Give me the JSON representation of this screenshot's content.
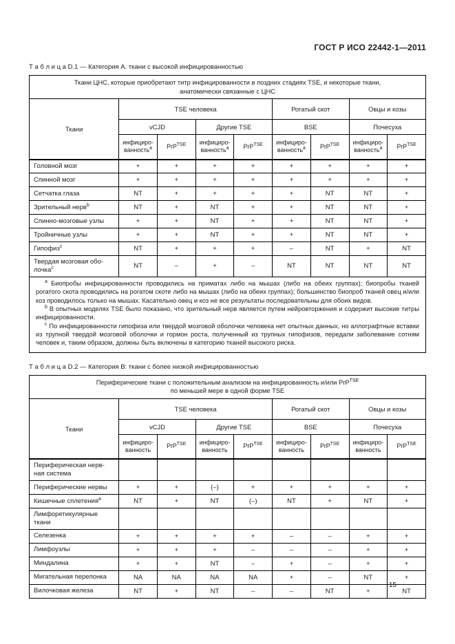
{
  "page": {
    "doc_code": "ГОСТ Р ИСО 22442-1—2011",
    "page_number": "15"
  },
  "shared": {
    "tissues_label": "Ткани",
    "groups": [
      "TSE человека",
      "Рогатый скот",
      "Овцы и козы"
    ],
    "subgroups": [
      "vCJD",
      "Другие TSE",
      "BSE",
      "Почесуха"
    ],
    "leaf_infectivity": "инфициро-\nванность",
    "prp_base": "PrP",
    "prp_sup": "TSE"
  },
  "table_d1": {
    "caption": "Т а б л и ц а  D.1 — Категория А. ткани с высокой инфицированностью",
    "banner": "Ткани ЦНС, которые приобретают титр инфицированности в поздних стадиях TSE, и некоторые ткани,\nанатомически связанные с ЦНС",
    "leaf_sup": "a",
    "rows": [
      {
        "label": "Головной мозг",
        "sup": "",
        "values": [
          "+",
          "+",
          "+",
          "+",
          "+",
          "+",
          "+",
          "+"
        ]
      },
      {
        "label": "Спинной мозг",
        "sup": "",
        "values": [
          "+",
          "+",
          "+",
          "+",
          "+",
          "+",
          "+",
          "+"
        ]
      },
      {
        "label": "Сетчатка глаза",
        "sup": "",
        "values": [
          "NT",
          "+",
          "+",
          "+",
          "+",
          "NT",
          "NT",
          "+"
        ]
      },
      {
        "label": "Зрительный нерв",
        "sup": "b",
        "values": [
          "NT",
          "+",
          "NT",
          "+",
          "+",
          "NT",
          "NT",
          "+"
        ]
      },
      {
        "label": "Спинно-мозговые узлы",
        "sup": "",
        "values": [
          "+",
          "+",
          "NT",
          "+",
          "+",
          "NT",
          "NT",
          "+"
        ]
      },
      {
        "label": "Тройничные узлы",
        "sup": "",
        "values": [
          "+",
          "+",
          "NT",
          "+",
          "+",
          "NT",
          "NT",
          "+"
        ]
      },
      {
        "label": "Гипофиз",
        "sup": "c",
        "values": [
          "NT",
          "+",
          "+",
          "+",
          "–",
          "NT",
          "+",
          "NT"
        ]
      },
      {
        "label": "Твердая мозговая обо-\nлочка",
        "sup": "c",
        "values": [
          "NT",
          "–",
          "+",
          "–",
          "NT",
          "NT",
          "NT",
          "NT"
        ]
      }
    ],
    "footnotes": [
      {
        "marker": "a",
        "text": " Биопробы инфицированности проводились на приматах либо на мышах (либо на обеих группах); биопробы тканей рогатого скота проводились на рогатом скоте либо на мышах (либо на обеих группах); большинство биопроб тканей овец и/или коз проводилось только на мышах. Касательно овец и коз не все результаты последовательны для обоих видов."
      },
      {
        "marker": "b",
        "text": " В опытных моделях TSE было показано, что зрительный нерв является путем нейровторжения и содержит высокие титры инфицированности."
      },
      {
        "marker": "c",
        "text": " По инфицированности гипофиза или твердой мозговой оболочки человека нет опытных данных, но аллографтные вставки из трупной твердой мозговой оболочки и гормон роста, полученный из трупных гипофизов, передали заболевание сотням человек и, таким образом, должны быть включены в категорию тканей высокого риска."
      }
    ]
  },
  "table_d2": {
    "caption": "Т а б л и ц а  D.2 — Категория В: ткани с более низкой инфицированностью",
    "banner_line1_pre": "Периферические ткани с положительным анализом на инфицированность и/или PrP",
    "banner_line1_sup": "TSE",
    "banner_line2": "по меньшей мере в одной форме TSE",
    "rows": [
      {
        "label": "Периферическая нерв-\nная система",
        "sup": "",
        "values": [
          "",
          "",
          "",
          "",
          "",
          "",
          "",
          ""
        ]
      },
      {
        "label": "Периферические нервы",
        "sup": "",
        "values": [
          "+",
          "+",
          "(–)",
          "+",
          "+",
          "+",
          "+",
          "+"
        ]
      },
      {
        "label": "Кишечные сплетения",
        "sup": "a",
        "values": [
          "NT",
          "+",
          "NT",
          "(–)",
          "NT",
          "+",
          "NT",
          "+"
        ]
      },
      {
        "label": "Лимфоретикулярные\nткани",
        "sup": "",
        "values": [
          "",
          "",
          "",
          "",
          "",
          "",
          "",
          ""
        ]
      },
      {
        "label": "Селезенка",
        "sup": "",
        "values": [
          "+",
          "+",
          "+",
          "+",
          "–",
          "–",
          "+",
          "+"
        ]
      },
      {
        "label": "Лимфоузлы",
        "sup": "",
        "values": [
          "+",
          "+",
          "+",
          "–",
          "–",
          "–",
          "+",
          "+"
        ]
      },
      {
        "label": "Миндалина",
        "sup": "",
        "values": [
          "+",
          "+",
          "NT",
          "–",
          "+",
          "–",
          "+",
          "+"
        ]
      },
      {
        "label": "Мигательная перепонка",
        "sup": "",
        "values": [
          "NA",
          "NA",
          "NA",
          "NA",
          "+",
          "–",
          "NT",
          "+"
        ]
      },
      {
        "label": "Вилочковая железа",
        "sup": "",
        "values": [
          "NT",
          "+",
          "NT",
          "–",
          "–",
          "NT",
          "+",
          "NT"
        ]
      }
    ]
  }
}
